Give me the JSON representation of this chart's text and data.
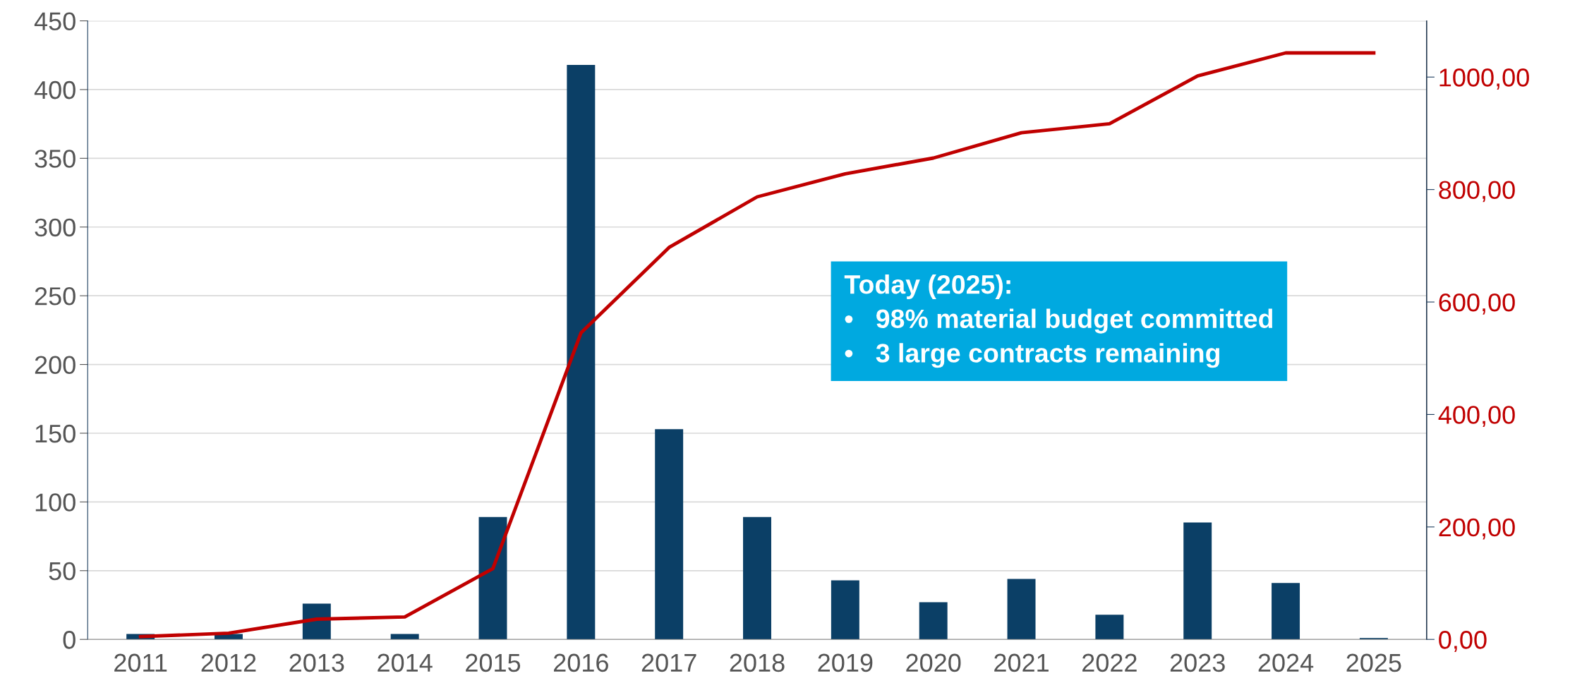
{
  "chart_data": {
    "type": "bar",
    "categories": [
      "2011",
      "2012",
      "2013",
      "2014",
      "2015",
      "2016",
      "2017",
      "2018",
      "2019",
      "2020",
      "2021",
      "2022",
      "2023",
      "2024",
      "2025"
    ],
    "series": [
      {
        "color": "#0b3f66",
        "values": [
          4,
          4,
          26,
          4,
          89,
          418,
          153,
          89,
          43,
          27,
          44,
          18,
          85,
          41,
          1
        ]
      },
      {
        "type": "line",
        "axis": "y2",
        "color": "#c00000",
        "values": [
          5,
          11,
          36,
          40,
          126,
          545,
          697,
          787,
          828,
          856,
          901,
          917,
          1002,
          1043,
          1043
        ]
      }
    ],
    "ylim": [
      0,
      450
    ],
    "yticks": [
      0,
      50,
      100,
      150,
      200,
      250,
      300,
      350,
      400,
      450
    ],
    "y2lim": [
      0,
      1100
    ],
    "y2ticks": [
      {
        "value": 0,
        "label": "0,00"
      },
      {
        "value": 200,
        "label": "200,00"
      },
      {
        "value": 400,
        "label": "400,00"
      },
      {
        "value": 600,
        "label": "600,00"
      },
      {
        "value": 800,
        "label": "800,00"
      },
      {
        "value": 1000,
        "label": "1000,00"
      }
    ],
    "grid": "y",
    "marker": "none",
    "line_style": "solid",
    "annotations": [
      "Today (2025):\n•   98% material budget committed\n•   3 large contracts remaining"
    ]
  }
}
